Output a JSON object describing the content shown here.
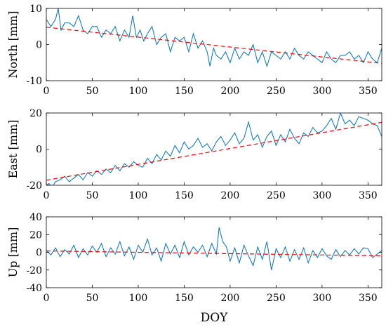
{
  "chart_data": [
    {
      "type": "line",
      "ylabel": "North [mm]",
      "xlabel": "",
      "xlim": [
        0,
        365
      ],
      "ylim": [
        -10,
        10
      ],
      "xticks": [
        0,
        50,
        100,
        150,
        200,
        250,
        300,
        350
      ],
      "yticks": [
        -10,
        0,
        10
      ],
      "series": [
        {
          "color": "#0072BD",
          "style": "solid",
          "x": [
            0,
            5,
            10,
            13,
            16,
            20,
            25,
            30,
            35,
            40,
            45,
            50,
            55,
            60,
            65,
            70,
            75,
            80,
            85,
            90,
            94,
            98,
            102,
            106,
            110,
            115,
            120,
            125,
            130,
            135,
            140,
            145,
            150,
            155,
            160,
            165,
            170,
            175,
            178,
            182,
            185,
            190,
            195,
            200,
            205,
            210,
            215,
            220,
            225,
            230,
            235,
            240,
            245,
            250,
            255,
            260,
            265,
            270,
            275,
            280,
            285,
            290,
            295,
            300,
            305,
            310,
            315,
            320,
            325,
            330,
            335,
            340,
            345,
            350,
            355,
            360,
            365
          ],
          "y": [
            7,
            5,
            7,
            10,
            4,
            6,
            6,
            5,
            8,
            4,
            3,
            5,
            5,
            2,
            4,
            3,
            5,
            1,
            4,
            2,
            8,
            2,
            4,
            1,
            3,
            5,
            0,
            2,
            3,
            -2,
            2,
            1,
            2,
            -2,
            3,
            -1,
            1,
            -2,
            -6,
            -1,
            -3,
            -4,
            -2,
            -5,
            -1,
            -4,
            -2,
            -3,
            0,
            -5,
            -2,
            -6,
            -2,
            -3,
            -4,
            -2,
            -4,
            -1,
            -3,
            -4,
            -2,
            -3,
            -4,
            -5,
            -2,
            -4,
            -5,
            -3,
            -3,
            -2,
            -4,
            -3,
            -5,
            -2,
            -4,
            -5,
            -1
          ]
        },
        {
          "color": "#FF0000",
          "style": "dashed",
          "x": [
            0,
            365
          ],
          "y": [
            4.8,
            -5.2
          ]
        }
      ]
    },
    {
      "type": "line",
      "ylabel": "East [mm]",
      "xlabel": "",
      "xlim": [
        0,
        365
      ],
      "ylim": [
        -20,
        20
      ],
      "xticks": [
        0,
        50,
        100,
        150,
        200,
        250,
        300,
        350
      ],
      "yticks": [
        -20,
        0,
        20
      ],
      "series": [
        {
          "color": "#0072BD",
          "style": "solid",
          "x": [
            0,
            3,
            6,
            10,
            15,
            20,
            25,
            30,
            35,
            40,
            45,
            50,
            55,
            60,
            65,
            70,
            75,
            80,
            85,
            90,
            95,
            100,
            105,
            110,
            115,
            120,
            125,
            130,
            135,
            140,
            145,
            150,
            155,
            160,
            165,
            170,
            175,
            180,
            185,
            190,
            195,
            200,
            205,
            210,
            215,
            220,
            225,
            230,
            235,
            240,
            245,
            250,
            255,
            260,
            265,
            270,
            275,
            280,
            285,
            290,
            295,
            300,
            305,
            310,
            315,
            320,
            325,
            330,
            335,
            340,
            345,
            350,
            355,
            360,
            365
          ],
          "y": [
            -20,
            -19,
            -21,
            -18,
            -17,
            -15,
            -18,
            -16,
            -14,
            -17,
            -13,
            -15,
            -12,
            -14,
            -11,
            -13,
            -9,
            -12,
            -8,
            -10,
            -7,
            -9,
            -10,
            -5,
            -8,
            -3,
            -6,
            -1,
            -4,
            2,
            -2,
            4,
            0,
            2,
            6,
            1,
            3,
            -1,
            4,
            7,
            2,
            5,
            9,
            3,
            6,
            15,
            5,
            8,
            1,
            7,
            10,
            2,
            8,
            4,
            11,
            6,
            3,
            9,
            7,
            12,
            9,
            10,
            13,
            17,
            11,
            20,
            14,
            16,
            13,
            18,
            17,
            16,
            14,
            13,
            7
          ]
        },
        {
          "color": "#FF0000",
          "style": "dashed",
          "x": [
            0,
            365
          ],
          "y": [
            -17.2,
            14.8
          ]
        }
      ]
    },
    {
      "type": "line",
      "ylabel": "Up [mm]",
      "xlabel": "DOY",
      "xlim": [
        0,
        365
      ],
      "ylim": [
        -40,
        40
      ],
      "xticks": [
        0,
        50,
        100,
        150,
        200,
        250,
        300,
        350
      ],
      "yticks": [
        -40,
        -20,
        0,
        20,
        40
      ],
      "series": [
        {
          "color": "#0072BD",
          "style": "solid",
          "x": [
            0,
            5,
            10,
            15,
            20,
            25,
            30,
            35,
            40,
            45,
            50,
            55,
            60,
            65,
            70,
            75,
            80,
            85,
            90,
            95,
            100,
            105,
            110,
            115,
            120,
            125,
            130,
            135,
            140,
            145,
            150,
            155,
            160,
            165,
            170,
            175,
            180,
            185,
            188,
            192,
            196,
            200,
            205,
            210,
            215,
            220,
            225,
            230,
            235,
            240,
            245,
            250,
            255,
            260,
            265,
            270,
            275,
            280,
            285,
            290,
            295,
            300,
            305,
            310,
            315,
            320,
            325,
            330,
            335,
            340,
            345,
            350,
            355,
            360,
            365
          ],
          "y": [
            2,
            -3,
            5,
            -5,
            3,
            -2,
            8,
            -6,
            4,
            -3,
            7,
            0,
            10,
            -5,
            5,
            -2,
            12,
            -4,
            6,
            -8,
            8,
            0,
            15,
            -3,
            5,
            -10,
            10,
            -2,
            8,
            -6,
            12,
            -3,
            6,
            0,
            8,
            -5,
            10,
            -2,
            28,
            12,
            6,
            -10,
            5,
            -12,
            8,
            -4,
            -15,
            6,
            -8,
            12,
            -20,
            4,
            -6,
            6,
            -10,
            3,
            -8,
            5,
            -12,
            2,
            -6,
            4,
            -4,
            -8,
            3,
            -5,
            2,
            -3,
            4,
            -2,
            5,
            4,
            -6,
            -2,
            2
          ]
        },
        {
          "color": "#FF0000",
          "style": "dashed",
          "x": [
            0,
            365
          ],
          "y": [
            1.5,
            -4
          ]
        }
      ]
    }
  ]
}
